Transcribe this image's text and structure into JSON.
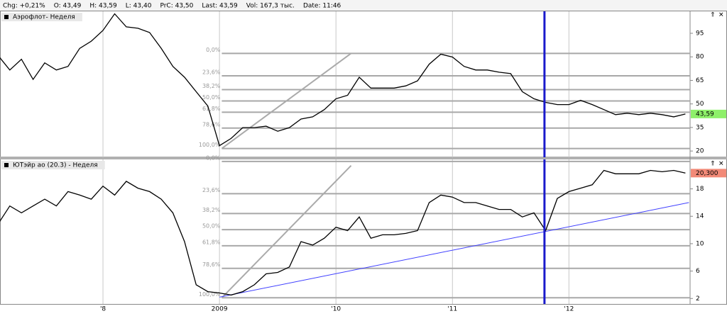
{
  "header": {
    "items": [
      "Chg: +0,21%",
      "O: 43,49",
      "H: 43,59",
      "L: 43,40",
      "PrC: 43,50",
      "Last: 43,59",
      "Vol: 167,3 тыс.",
      "Date: 11:46"
    ]
  },
  "chart_data": [
    {
      "type": "line",
      "title": "Аэрофлот- Неделя",
      "color": "#000000",
      "x": [
        2007.1,
        2007.2,
        2007.3,
        2007.4,
        2007.5,
        2007.6,
        2007.7,
        2007.8,
        2007.9,
        2008.0,
        2008.1,
        2008.2,
        2008.3,
        2008.4,
        2008.5,
        2008.6,
        2008.7,
        2008.8,
        2008.9,
        2009.0,
        2009.1,
        2009.2,
        2009.3,
        2009.4,
        2009.5,
        2009.6,
        2009.7,
        2009.8,
        2009.9,
        2010.0,
        2010.1,
        2010.2,
        2010.3,
        2010.4,
        2010.5,
        2010.6,
        2010.7,
        2010.8,
        2010.9,
        2011.0,
        2011.1,
        2011.2,
        2011.3,
        2011.4,
        2011.5,
        2011.6,
        2011.7,
        2011.8,
        2011.9,
        2012.0,
        2012.1,
        2012.2,
        2012.3,
        2012.4,
        2012.5,
        2012.6,
        2012.7,
        2012.8,
        2012.9,
        2013.0
      ],
      "values": [
        80.8,
        71.6,
        78.5,
        65.6,
        76.2,
        71.6,
        73.9,
        85.4,
        90,
        96.8,
        107.4,
        99.1,
        98.2,
        95.5,
        85.4,
        73.9,
        67,
        57.8,
        48.7,
        23.4,
        28,
        34.9,
        34.9,
        35.8,
        32.6,
        34.9,
        40.4,
        41.8,
        46.4,
        53.3,
        55.5,
        67,
        60.1,
        60.1,
        60.1,
        61.5,
        64.7,
        75.3,
        81.7,
        79.9,
        73.9,
        71.6,
        71.6,
        70.2,
        69.3,
        57.8,
        53.3,
        51,
        49.6,
        49.6,
        52.3,
        49.6,
        46.4,
        43.2,
        44.1,
        43.2,
        44.1,
        43.2,
        41.8,
        43.59
      ],
      "xlim": [
        2007.116,
        2013.04
      ],
      "xticks": [
        2008,
        2009,
        2010,
        2011,
        2012
      ],
      "ylim": [
        16,
        109
      ],
      "yticks": [
        20,
        35,
        50,
        65,
        80,
        95
      ],
      "fib_x": 2009.02,
      "fib_levels": [
        {
          "value": 82.2,
          "label": "0,0%"
        },
        {
          "value": 67.9,
          "label": "23,6%"
        },
        {
          "value": 59.1,
          "label": "38,2%"
        },
        {
          "value": 51.9,
          "label": "50,0%"
        },
        {
          "value": 44.7,
          "label": "61,8%"
        },
        {
          "value": 34.6,
          "label": "78,6%"
        },
        {
          "value": 21.6,
          "label": "100,0%"
        }
      ],
      "trend_lines": [
        {
          "x": [
            2009.02,
            2010.13
          ],
          "y": [
            21.6,
            82.2
          ],
          "color": "#aaaaaa"
        }
      ],
      "vline": 2011.79,
      "last": {
        "value": 43.59,
        "label": "43,59",
        "color": "#8ef06a"
      }
    },
    {
      "type": "line",
      "title": "ЮТэйр ао (20.3) - Неделя",
      "color": "#000000",
      "x": [
        2007.1,
        2007.2,
        2007.3,
        2007.4,
        2007.5,
        2007.6,
        2007.7,
        2007.8,
        2007.9,
        2008.0,
        2008.1,
        2008.2,
        2008.3,
        2008.4,
        2008.5,
        2008.6,
        2008.7,
        2008.8,
        2008.9,
        2009.0,
        2009.1,
        2009.2,
        2009.3,
        2009.4,
        2009.5,
        2009.6,
        2009.7,
        2009.8,
        2009.9,
        2010.0,
        2010.1,
        2010.2,
        2010.3,
        2010.4,
        2010.5,
        2010.6,
        2010.7,
        2010.8,
        2010.9,
        2011.0,
        2011.1,
        2011.2,
        2011.3,
        2011.4,
        2011.5,
        2011.6,
        2011.7,
        2011.8,
        2011.9,
        2012.0,
        2012.1,
        2012.2,
        2012.3,
        2012.4,
        2012.5,
        2012.6,
        2012.7,
        2012.8,
        2012.9,
        2013.0
      ],
      "values": [
        12.9,
        15.5,
        14.5,
        15.5,
        16.5,
        15.5,
        17.6,
        17.1,
        16.5,
        18.4,
        17.1,
        19.1,
        18.1,
        17.6,
        16.5,
        14.5,
        10.3,
        4,
        3,
        2.8,
        2.5,
        3,
        4,
        5.6,
        5.8,
        6.6,
        10.3,
        9.8,
        10.8,
        12.4,
        11.9,
        13.9,
        10.8,
        11.3,
        11.3,
        11.5,
        11.9,
        16,
        17.1,
        16.8,
        16,
        16,
        15.5,
        15,
        15,
        13.9,
        14.5,
        11.9,
        16.6,
        17.6,
        18.1,
        18.6,
        20.7,
        20.2,
        20.2,
        20.2,
        20.7,
        20.5,
        20.7,
        20.3
      ],
      "xlim": [
        2007.116,
        2013.04
      ],
      "xticks": [
        {
          "value": 2008,
          "label": "'8"
        },
        2009,
        {
          "value": 2010,
          "label": "'10"
        },
        {
          "value": 2011,
          "label": "'11"
        },
        {
          "value": 2012,
          "label": "'12"
        }
      ],
      "ylim": [
        1.2,
        22.3
      ],
      "yticks": [
        2,
        6,
        10,
        14,
        18
      ],
      "fib_x": 2009.02,
      "fib_levels": [
        {
          "value": 22.0,
          "label": "0,0%"
        },
        {
          "value": 17.3,
          "label": "23,6%"
        },
        {
          "value": 14.4,
          "label": "38,2%"
        },
        {
          "value": 12.05,
          "label": "50,0%"
        },
        {
          "value": 9.7,
          "label": "61,8%"
        },
        {
          "value": 6.4,
          "label": "78,6%"
        },
        {
          "value": 2.1,
          "label": "100,0%"
        }
      ],
      "trend_lines": [
        {
          "x": [
            2009.02,
            2010.13
          ],
          "y": [
            2.1,
            21.4
          ],
          "color": "#aaaaaa"
        },
        {
          "x": [
            2009.0,
            2013.03
          ],
          "y": [
            2.2,
            16.0
          ],
          "color": "#4040ff"
        }
      ],
      "vline": 2011.79,
      "last": {
        "value": 20.3,
        "label": "20,300",
        "color": "#f28a78"
      }
    }
  ]
}
